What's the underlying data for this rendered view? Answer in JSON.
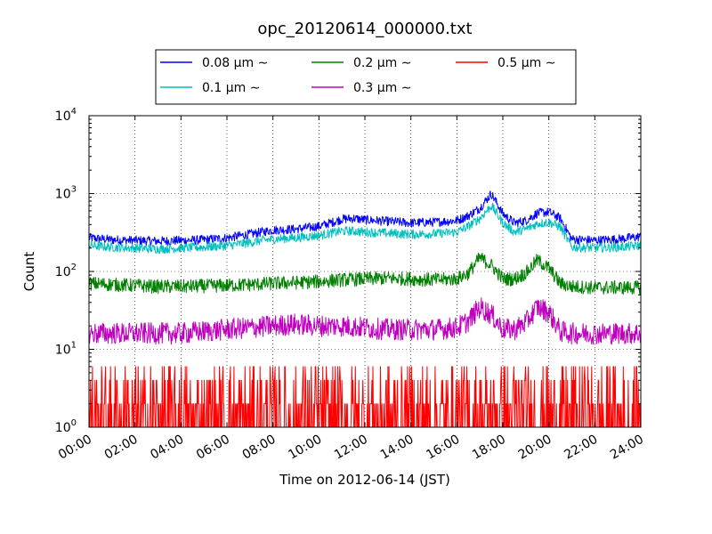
{
  "chart_data": {
    "type": "line",
    "title": "opc_20120614_000000.txt",
    "xlabel": "Time on 2012-06-14 (JST)",
    "ylabel": "Count",
    "x_unit": "hours",
    "xlim": [
      0,
      24
    ],
    "ylim": [
      1,
      10000
    ],
    "yscale": "log",
    "grid": true,
    "legend_position": "top-center",
    "x_ticks": [
      {
        "value": 0,
        "label": "00:00"
      },
      {
        "value": 2,
        "label": "02:00"
      },
      {
        "value": 4,
        "label": "04:00"
      },
      {
        "value": 6,
        "label": "06:00"
      },
      {
        "value": 8,
        "label": "08:00"
      },
      {
        "value": 10,
        "label": "10:00"
      },
      {
        "value": 12,
        "label": "12:00"
      },
      {
        "value": 14,
        "label": "14:00"
      },
      {
        "value": 16,
        "label": "16:00"
      },
      {
        "value": 18,
        "label": "18:00"
      },
      {
        "value": 20,
        "label": "20:00"
      },
      {
        "value": 22,
        "label": "22:00"
      },
      {
        "value": 24,
        "label": "24:00"
      }
    ],
    "y_ticks": [
      {
        "value": 1,
        "base": "10",
        "exp": "0"
      },
      {
        "value": 10,
        "base": "10",
        "exp": "1"
      },
      {
        "value": 100,
        "base": "10",
        "exp": "2"
      },
      {
        "value": 1000,
        "base": "10",
        "exp": "3"
      },
      {
        "value": 10000,
        "base": "10",
        "exp": "4"
      }
    ],
    "series": [
      {
        "name": "0.08 μm ∼",
        "color": "#0000ff",
        "x": [
          0,
          1,
          2,
          3,
          4,
          5,
          6,
          7,
          7.5,
          8,
          9,
          10,
          10.5,
          11,
          11.5,
          12,
          13,
          14,
          15,
          16,
          16.5,
          17,
          17.5,
          18,
          18.5,
          19,
          19.5,
          20,
          20.5,
          21,
          22,
          23,
          24
        ],
        "y": [
          270,
          255,
          250,
          245,
          250,
          255,
          270,
          300,
          320,
          340,
          350,
          380,
          420,
          470,
          480,
          460,
          440,
          420,
          430,
          450,
          520,
          650,
          1000,
          550,
          420,
          450,
          560,
          580,
          480,
          260,
          250,
          260,
          280
        ]
      },
      {
        "name": "0.1 μm ∼",
        "color": "#00bfbf",
        "x": [
          0,
          1,
          2,
          3,
          4,
          5,
          6,
          7,
          7.5,
          8,
          9,
          10,
          10.5,
          11,
          11.5,
          12,
          13,
          14,
          15,
          16,
          16.5,
          17,
          17.5,
          18,
          18.5,
          19,
          19.5,
          20,
          20.5,
          21,
          22,
          23,
          24
        ],
        "y": [
          215,
          205,
          200,
          195,
          200,
          205,
          215,
          235,
          250,
          260,
          270,
          290,
          310,
          330,
          330,
          320,
          310,
          300,
          305,
          320,
          380,
          480,
          700,
          420,
          320,
          350,
          410,
          430,
          370,
          205,
          200,
          205,
          215
        ]
      },
      {
        "name": "0.2 μm ∼",
        "color": "#008000",
        "x": [
          0,
          1,
          2,
          3,
          4,
          5,
          6,
          7,
          8,
          9,
          10,
          11,
          12,
          13,
          14,
          15,
          16,
          16.5,
          17,
          17.5,
          18,
          18.5,
          19,
          19.5,
          20,
          20.5,
          21,
          22,
          23,
          24
        ],
        "y": [
          70,
          68,
          66,
          64,
          64,
          65,
          66,
          68,
          70,
          72,
          74,
          78,
          80,
          82,
          80,
          78,
          80,
          95,
          150,
          120,
          80,
          80,
          95,
          140,
          110,
          70,
          64,
          62,
          62,
          62
        ]
      },
      {
        "name": "0.3 μm ∼",
        "color": "#bf00bf",
        "x": [
          0,
          1,
          2,
          3,
          4,
          5,
          6,
          7,
          8,
          9,
          10,
          11,
          12,
          13,
          14,
          15,
          16,
          16.5,
          17,
          17.5,
          18,
          18.5,
          19,
          19.5,
          20,
          20.5,
          21,
          22,
          23,
          24
        ],
        "y": [
          16,
          16,
          16,
          16,
          16,
          17,
          18,
          19,
          20,
          21,
          20,
          20,
          19,
          18,
          18,
          18,
          19,
          23,
          35,
          28,
          18,
          18,
          22,
          35,
          30,
          17,
          16,
          16,
          16,
          16
        ]
      },
      {
        "name": "0.5 μm ∼",
        "color": "#ff0000",
        "x": [
          0,
          4,
          8,
          12,
          16,
          18,
          20,
          24
        ],
        "y": [
          2,
          2,
          2,
          2,
          2,
          2,
          2,
          2
        ]
      }
    ]
  }
}
